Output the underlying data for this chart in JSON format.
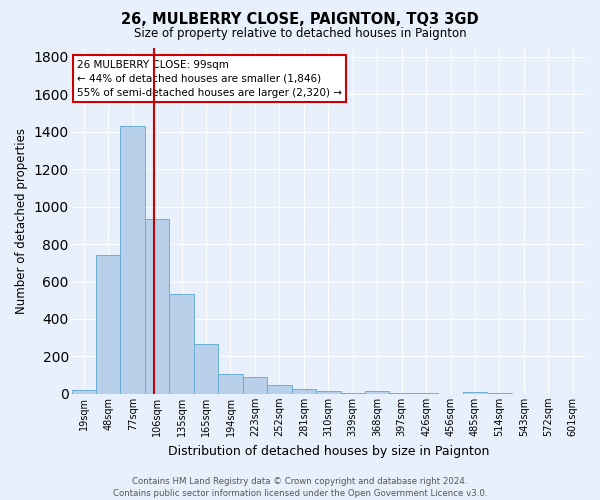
{
  "title": "26, MULBERRY CLOSE, PAIGNTON, TQ3 3GD",
  "subtitle": "Size of property relative to detached houses in Paignton",
  "xlabel": "Distribution of detached houses by size in Paignton",
  "ylabel": "Number of detached properties",
  "footer_line1": "Contains HM Land Registry data © Crown copyright and database right 2024.",
  "footer_line2": "Contains public sector information licensed under the Open Government Licence v3.0.",
  "categories": [
    "19sqm",
    "48sqm",
    "77sqm",
    "106sqm",
    "135sqm",
    "165sqm",
    "194sqm",
    "223sqm",
    "252sqm",
    "281sqm",
    "310sqm",
    "339sqm",
    "368sqm",
    "397sqm",
    "426sqm",
    "456sqm",
    "485sqm",
    "514sqm",
    "543sqm",
    "572sqm",
    "601sqm"
  ],
  "values": [
    20,
    740,
    1430,
    935,
    535,
    265,
    105,
    90,
    48,
    28,
    18,
    5,
    13,
    5,
    3,
    0,
    12,
    3,
    0,
    0,
    0
  ],
  "bar_color": "#b8d0ea",
  "bar_edge_color": "#6baed6",
  "bg_color": "#e8f0fb",
  "grid_color": "#ffffff",
  "vline_x": 2.88,
  "vline_color": "#cc0000",
  "annotation_line1": "26 MULBERRY CLOSE: 99sqm",
  "annotation_line2": "← 44% of detached houses are smaller (1,846)",
  "annotation_line3": "55% of semi-detached houses are larger (2,320) →",
  "annotation_box_color": "#ffffff",
  "annotation_box_edge": "#cc0000",
  "ylim": [
    0,
    1850
  ],
  "yticks": [
    0,
    200,
    400,
    600,
    800,
    1000,
    1200,
    1400,
    1600,
    1800
  ]
}
